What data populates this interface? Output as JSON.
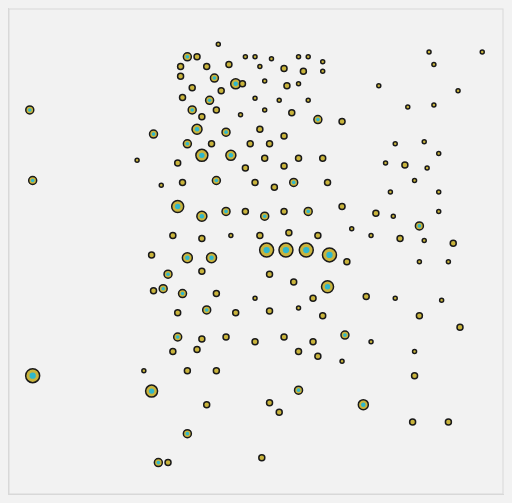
{
  "chart_data": {
    "type": "bubble",
    "x": [
      185,
      217,
      195,
      245,
      255,
      272,
      300,
      310,
      325,
      178,
      205,
      228,
      260,
      285,
      305,
      325,
      435,
      440,
      490,
      178,
      213,
      235,
      265,
      288,
      300,
      190,
      220,
      242,
      383,
      413,
      440,
      465,
      180,
      208,
      255,
      280,
      310,
      190,
      215,
      265,
      293,
      320,
      345,
      200,
      240,
      195,
      225,
      260,
      285,
      150,
      185,
      210,
      250,
      270,
      400,
      430,
      445,
      200,
      230,
      265,
      300,
      325,
      133,
      175,
      245,
      285,
      390,
      410,
      433,
      158,
      180,
      215,
      255,
      275,
      295,
      330,
      395,
      445,
      420,
      175,
      200,
      225,
      245,
      265,
      285,
      310,
      345,
      380,
      398,
      425,
      445,
      170,
      200,
      230,
      260,
      290,
      320,
      355,
      375,
      405,
      430,
      460,
      148,
      185,
      210,
      267,
      287,
      308,
      332,
      350,
      425,
      455,
      165,
      200,
      270,
      295,
      330,
      160,
      150,
      180,
      215,
      255,
      315,
      370,
      400,
      448,
      175,
      205,
      235,
      270,
      300,
      325,
      425,
      467,
      175,
      200,
      225,
      255,
      285,
      315,
      348,
      375,
      420,
      170,
      195,
      300,
      320,
      345,
      185,
      215,
      420,
      148,
      205,
      270,
      300,
      280,
      367,
      418,
      455,
      185,
      155,
      165,
      262,
      22,
      25,
      25,
      140
    ],
    "values": [
      453,
      466,
      453,
      453,
      453,
      451,
      453,
      453,
      448,
      443,
      443,
      445,
      443,
      441,
      438,
      438,
      458,
      445,
      458,
      433,
      431,
      425,
      428,
      423,
      425,
      421,
      418,
      425,
      423,
      401,
      403,
      418,
      411,
      408,
      410,
      408,
      408,
      398,
      398,
      398,
      395,
      388,
      386,
      391,
      393,
      378,
      375,
      378,
      371,
      373,
      363,
      363,
      363,
      363,
      363,
      365,
      353,
      351,
      351,
      348,
      348,
      348,
      346,
      343,
      338,
      340,
      343,
      341,
      338,
      320,
      323,
      325,
      323,
      318,
      323,
      323,
      313,
      313,
      325,
      298,
      288,
      293,
      293,
      288,
      293,
      293,
      298,
      291,
      288,
      278,
      293,
      268,
      265,
      268,
      268,
      271,
      268,
      275,
      268,
      265,
      263,
      260,
      248,
      245,
      245,
      253,
      253,
      253,
      248,
      241,
      241,
      241,
      228,
      231,
      228,
      220,
      215,
      213,
      211,
      208,
      208,
      203,
      203,
      205,
      203,
      201,
      188,
      191,
      188,
      190,
      193,
      185,
      185,
      173,
      163,
      161,
      163,
      158,
      163,
      158,
      165,
      158,
      148,
      148,
      150,
      148,
      143,
      138,
      128,
      128,
      123,
      107,
      93,
      95,
      108,
      85,
      93,
      75,
      75,
      63,
      33,
      33,
      38,
      398,
      325,
      123,
      128
    ],
    "sizes": [
      4,
      2,
      3,
      2,
      2,
      2,
      2,
      2,
      2,
      3,
      3,
      3,
      2,
      3,
      3,
      2,
      2,
      2,
      2,
      3,
      4,
      5,
      2,
      3,
      2,
      3,
      3,
      3,
      2,
      2,
      2,
      2,
      3,
      4,
      2,
      2,
      2,
      4,
      3,
      2,
      3,
      4,
      3,
      3,
      2,
      5,
      4,
      3,
      3,
      4,
      4,
      3,
      3,
      3,
      2,
      2,
      2,
      6,
      5,
      3,
      3,
      3,
      2,
      3,
      3,
      3,
      2,
      3,
      2,
      2,
      3,
      4,
      3,
      3,
      4,
      3,
      2,
      2,
      2,
      6,
      5,
      4,
      3,
      4,
      3,
      4,
      3,
      3,
      2,
      4,
      2,
      3,
      3,
      2,
      3,
      3,
      3,
      2,
      2,
      3,
      2,
      3,
      3,
      5,
      5,
      7,
      7,
      7,
      7,
      3,
      2,
      2,
      4,
      3,
      3,
      3,
      6,
      4,
      3,
      4,
      3,
      2,
      3,
      3,
      2,
      2,
      3,
      4,
      3,
      3,
      2,
      3,
      3,
      3,
      4,
      3,
      3,
      3,
      3,
      3,
      4,
      2,
      2,
      3,
      3,
      3,
      3,
      2,
      3,
      3,
      3,
      6,
      3,
      3,
      4,
      3,
      5,
      3,
      3,
      4,
      4,
      3,
      3,
      4,
      4,
      7,
      2
    ],
    "color": "#c9b43c",
    "marker": "circle",
    "xlim": [
      0,
      512
    ],
    "ylim": [
      0,
      503
    ],
    "grid": false,
    "tick_labels": false
  }
}
